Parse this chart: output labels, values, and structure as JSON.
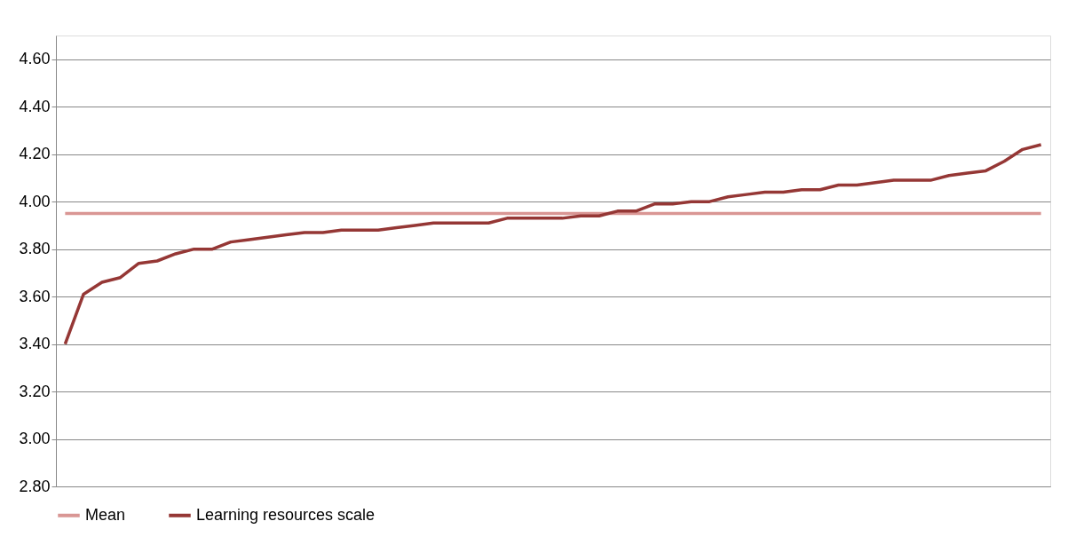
{
  "chart_data": {
    "type": "line",
    "categories": [
      null,
      null,
      null,
      null,
      null,
      null,
      null,
      null,
      null,
      null,
      null,
      null,
      null,
      null,
      null,
      null,
      null,
      null,
      null,
      null,
      null,
      null,
      null,
      null,
      null,
      null,
      null,
      null,
      null,
      null,
      null,
      null,
      null,
      null,
      null,
      null,
      null,
      null,
      null,
      null,
      null,
      null,
      null,
      null,
      null,
      null,
      null,
      null,
      null,
      null,
      null,
      null,
      null,
      null
    ],
    "series": [
      {
        "name": "Mean",
        "color": "#d99694",
        "values": [
          3.95,
          3.95,
          3.95,
          3.95,
          3.95,
          3.95,
          3.95,
          3.95,
          3.95,
          3.95,
          3.95,
          3.95,
          3.95,
          3.95,
          3.95,
          3.95,
          3.95,
          3.95,
          3.95,
          3.95,
          3.95,
          3.95,
          3.95,
          3.95,
          3.95,
          3.95,
          3.95,
          3.95,
          3.95,
          3.95,
          3.95,
          3.95,
          3.95,
          3.95,
          3.95,
          3.95,
          3.95,
          3.95,
          3.95,
          3.95,
          3.95,
          3.95,
          3.95,
          3.95,
          3.95,
          3.95,
          3.95,
          3.95,
          3.95,
          3.95,
          3.95,
          3.95,
          3.95,
          3.95
        ]
      },
      {
        "name": "Learning resources scale",
        "color": "#953735",
        "values": [
          3.4,
          3.61,
          3.66,
          3.68,
          3.74,
          3.75,
          3.78,
          3.8,
          3.8,
          3.83,
          3.84,
          3.85,
          3.86,
          3.87,
          3.87,
          3.88,
          3.88,
          3.88,
          3.89,
          3.9,
          3.91,
          3.91,
          3.91,
          3.91,
          3.93,
          3.93,
          3.93,
          3.93,
          3.94,
          3.94,
          3.96,
          3.96,
          3.99,
          3.99,
          4.0,
          4.0,
          4.02,
          4.03,
          4.04,
          4.04,
          4.05,
          4.05,
          4.07,
          4.07,
          4.08,
          4.09,
          4.09,
          4.09,
          4.11,
          4.12,
          4.13,
          4.17,
          4.22,
          4.24
        ]
      }
    ],
    "ylim": [
      2.8,
      4.7
    ],
    "yticks": [
      {
        "value": 2.8,
        "label": "2.80"
      },
      {
        "value": 3.0,
        "label": "3.00"
      },
      {
        "value": 3.2,
        "label": "3.20"
      },
      {
        "value": 3.4,
        "label": "3.40"
      },
      {
        "value": 3.6,
        "label": "3.60"
      },
      {
        "value": 3.8,
        "label": "3.80"
      },
      {
        "value": 4.0,
        "label": "4.00"
      },
      {
        "value": 4.2,
        "label": "4.20"
      },
      {
        "value": 4.4,
        "label": "4.40"
      },
      {
        "value": 4.6,
        "label": "4.60"
      }
    ],
    "grid": "y",
    "legend": "bottom",
    "tick_labels": "y",
    "marker": "none",
    "line_style": "solid"
  }
}
